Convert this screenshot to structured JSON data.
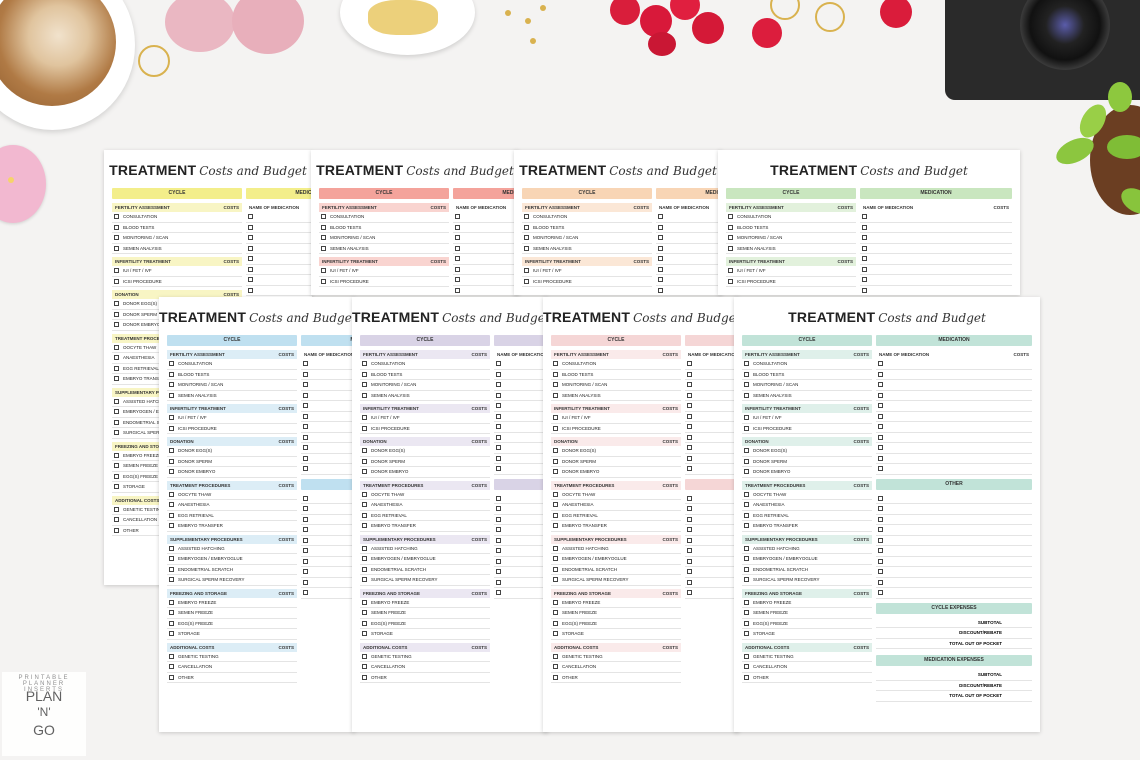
{
  "title": {
    "bold": "TREATMENT",
    "script": "Costs and Budget"
  },
  "headers": {
    "cycle": "CYCLE",
    "medication": "MEDICATION",
    "costs": "COSTS",
    "name_of_medication": "NAME OF MEDICATION",
    "other": "OTHER",
    "cycle_expenses": "CYCLE EXPENSES",
    "medication_expenses": "MEDICATION EXPENSES"
  },
  "sections": [
    {
      "name": "FERTILITY ASSESSMENT",
      "items": [
        "CONSULTATION",
        "BLOOD TESTS",
        "MONITORING / SCAN",
        "SEMEN ANALYSIS"
      ]
    },
    {
      "name": "INFERTILITY TREATMENT",
      "items": [
        "IUI / FET / IVF",
        "ICSI PROCEDURE"
      ]
    },
    {
      "name": "DONATION",
      "items": [
        "DONOR EGG(S)",
        "DONOR SPERM",
        "DONOR EMBRYO"
      ]
    },
    {
      "name": "TREATMENT PROCEDURES",
      "items": [
        "OOCYTE THAW",
        "ANAESTHESIA",
        "EGG RETRIEVAL",
        "EMBRYO TRANSFER"
      ]
    },
    {
      "name": "SUPPLEMENTARY PROCEDURES",
      "items": [
        "ASSISTED HATCHING",
        "EMBRYOGEN / EMBRYOGLUE",
        "ENDOMETRIAL SCRATCH",
        "SURGICAL SPERM RECOVERY"
      ]
    },
    {
      "name": "FREEZING AND STORAGE",
      "items": [
        "EMBRYO FREEZE",
        "SEMEN FREEZE",
        "EGG(S) FREEZE",
        "STORAGE"
      ]
    },
    {
      "name": "ADDITIONAL COSTS",
      "items": [
        "GENETIC TESTING",
        "CANCELLATION",
        "OTHER"
      ]
    }
  ],
  "summary": [
    "SUBTOTAL",
    "DISCOUNT/REBATE",
    "TOTAL OUT OF POCKET"
  ],
  "logo": {
    "ring_text": "PRINTABLE PLANNER INSERTS",
    "line1": "PLAN",
    "line2": "'N'",
    "line3": "GO"
  },
  "colors": {
    "yellow": "#f3ee8a",
    "yellow_light": "#f8f5c4",
    "coral": "#f4a39b",
    "coral_light": "#f9d4d0",
    "peach": "#f8d5b5",
    "peach_light": "#fbe7d6",
    "green": "#c9e6bf",
    "green_light": "#e2f1dc",
    "blue": "#bfe0f0",
    "blue_light": "#dcedf6",
    "lavender": "#d9d3e6",
    "lavender_light": "#ebe7f2",
    "pink": "#f5d6d6",
    "pink_light": "#faeaea",
    "teal": "#c1e3d8",
    "teal_light": "#dff0ea"
  }
}
